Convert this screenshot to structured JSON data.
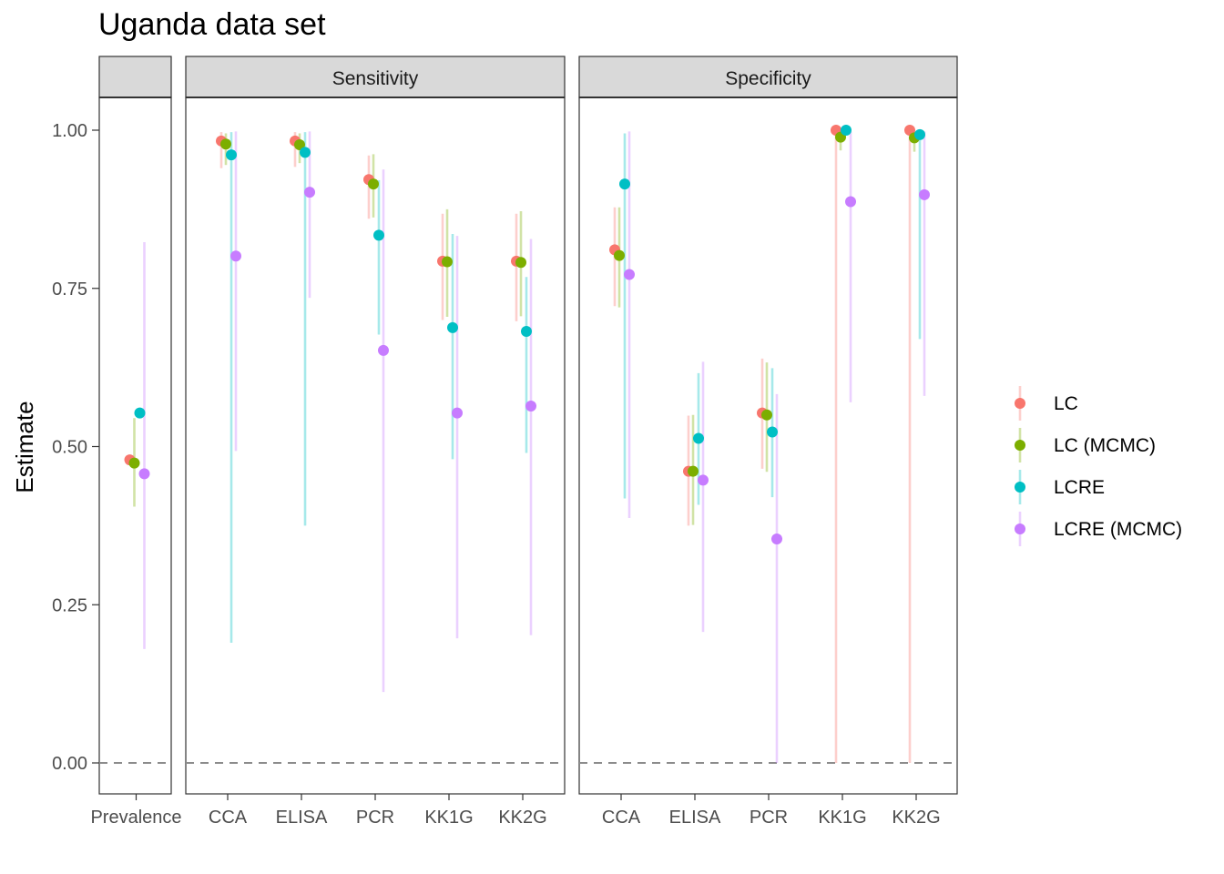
{
  "title": "Uganda data set",
  "chart_data": {
    "type": "scatter",
    "title": "Uganda data set",
    "ylabel": "Estimate",
    "xlabel": "",
    "ylim": [
      -0.05,
      1.1
    ],
    "y_ticks": [
      "0.00",
      "0.25",
      "0.50",
      "0.75",
      "1.00"
    ],
    "reference_line": 0,
    "grid": false,
    "legend_position": "right",
    "series": [
      {
        "name": "LC",
        "color": "#F8766D"
      },
      {
        "name": "LC (MCMC)",
        "color": "#7CAE00"
      },
      {
        "name": "LCRE",
        "color": "#00BFC4"
      },
      {
        "name": "LCRE (MCMC)",
        "color": "#C77CFF"
      }
    ],
    "panels": [
      {
        "strip": "",
        "categories": [
          "Prevalence"
        ],
        "points": {
          "LC": [
            {
              "cat": "Prevalence",
              "est": 0.479,
              "lo": null,
              "hi": null
            }
          ],
          "LC (MCMC)": [
            {
              "cat": "Prevalence",
              "est": 0.474,
              "lo": 0.405,
              "hi": 0.545
            }
          ],
          "LCRE": [
            {
              "cat": "Prevalence",
              "est": 0.553,
              "lo": null,
              "hi": null
            }
          ],
          "LCRE (MCMC)": [
            {
              "cat": "Prevalence",
              "est": 0.457,
              "lo": 0.18,
              "hi": 0.823
            }
          ]
        }
      },
      {
        "strip": "Sensitivity",
        "categories": [
          "CCA",
          "ELISA",
          "PCR",
          "KK1G",
          "KK2G"
        ],
        "points": {
          "LC": [
            {
              "cat": "CCA",
              "est": 0.983,
              "lo": 0.94,
              "hi": 0.997
            },
            {
              "cat": "ELISA",
              "est": 0.983,
              "lo": 0.942,
              "hi": 0.997
            },
            {
              "cat": "PCR",
              "est": 0.922,
              "lo": 0.86,
              "hi": 0.96
            },
            {
              "cat": "KK1G",
              "est": 0.793,
              "lo": 0.7,
              "hi": 0.868
            },
            {
              "cat": "KK2G",
              "est": 0.793,
              "lo": 0.698,
              "hi": 0.868
            }
          ],
          "LC (MCMC)": [
            {
              "cat": "CCA",
              "est": 0.978,
              "lo": 0.945,
              "hi": 0.995
            },
            {
              "cat": "ELISA",
              "est": 0.977,
              "lo": 0.948,
              "hi": 0.995
            },
            {
              "cat": "PCR",
              "est": 0.915,
              "lo": 0.862,
              "hi": 0.962
            },
            {
              "cat": "KK1G",
              "est": 0.792,
              "lo": 0.705,
              "hi": 0.875
            },
            {
              "cat": "KK2G",
              "est": 0.791,
              "lo": 0.706,
              "hi": 0.872
            }
          ],
          "LCRE": [
            {
              "cat": "CCA",
              "est": 0.961,
              "lo": 0.19,
              "hi": 0.997
            },
            {
              "cat": "ELISA",
              "est": 0.965,
              "lo": 0.375,
              "hi": 0.997
            },
            {
              "cat": "PCR",
              "est": 0.834,
              "lo": 0.677,
              "hi": 0.921
            },
            {
              "cat": "KK1G",
              "est": 0.688,
              "lo": 0.48,
              "hi": 0.836
            },
            {
              "cat": "KK2G",
              "est": 0.682,
              "lo": 0.49,
              "hi": 0.768
            }
          ],
          "LCRE (MCMC)": [
            {
              "cat": "CCA",
              "est": 0.801,
              "lo": 0.493,
              "hi": 0.998
            },
            {
              "cat": "ELISA",
              "est": 0.902,
              "lo": 0.735,
              "hi": 0.998
            },
            {
              "cat": "PCR",
              "est": 0.652,
              "lo": 0.112,
              "hi": 0.938
            },
            {
              "cat": "KK1G",
              "est": 0.553,
              "lo": 0.197,
              "hi": 0.833
            },
            {
              "cat": "KK2G",
              "est": 0.564,
              "lo": 0.202,
              "hi": 0.828
            }
          ]
        }
      },
      {
        "strip": "Specificity",
        "categories": [
          "CCA",
          "ELISA",
          "PCR",
          "KK1G",
          "KK2G"
        ],
        "points": {
          "LC": [
            {
              "cat": "CCA",
              "est": 0.811,
              "lo": 0.722,
              "hi": 0.878
            },
            {
              "cat": "ELISA",
              "est": 0.461,
              "lo": 0.375,
              "hi": 0.549
            },
            {
              "cat": "PCR",
              "est": 0.553,
              "lo": 0.465,
              "hi": 0.639
            },
            {
              "cat": "KK1G",
              "est": 1.0,
              "lo": 0.0,
              "hi": 1.0
            },
            {
              "cat": "KK2G",
              "est": 1.0,
              "lo": 0.0,
              "hi": 1.0
            }
          ],
          "LC (MCMC)": [
            {
              "cat": "CCA",
              "est": 0.802,
              "lo": 0.72,
              "hi": 0.878
            },
            {
              "cat": "ELISA",
              "est": 0.461,
              "lo": 0.376,
              "hi": 0.55
            },
            {
              "cat": "PCR",
              "est": 0.55,
              "lo": 0.46,
              "hi": 0.633
            },
            {
              "cat": "KK1G",
              "est": 0.989,
              "lo": 0.968,
              "hi": 0.999
            },
            {
              "cat": "KK2G",
              "est": 0.988,
              "lo": 0.966,
              "hi": 0.999
            }
          ],
          "LCRE": [
            {
              "cat": "CCA",
              "est": 0.915,
              "lo": 0.418,
              "hi": 0.995
            },
            {
              "cat": "ELISA",
              "est": 0.513,
              "lo": 0.408,
              "hi": 0.616
            },
            {
              "cat": "PCR",
              "est": 0.523,
              "lo": 0.42,
              "hi": 0.624
            },
            {
              "cat": "KK1G",
              "est": 1.0,
              "lo": null,
              "hi": null
            },
            {
              "cat": "KK2G",
              "est": 0.993,
              "lo": 0.67,
              "hi": 1.0
            }
          ],
          "LCRE (MCMC)": [
            {
              "cat": "CCA",
              "est": 0.772,
              "lo": 0.387,
              "hi": 0.998
            },
            {
              "cat": "ELISA",
              "est": 0.447,
              "lo": 0.207,
              "hi": 0.634
            },
            {
              "cat": "PCR",
              "est": 0.354,
              "lo": 0.0,
              "hi": 0.583
            },
            {
              "cat": "KK1G",
              "est": 0.887,
              "lo": 0.57,
              "hi": 0.998
            },
            {
              "cat": "KK2G",
              "est": 0.898,
              "lo": 0.58,
              "hi": 0.998
            }
          ]
        }
      }
    ]
  }
}
